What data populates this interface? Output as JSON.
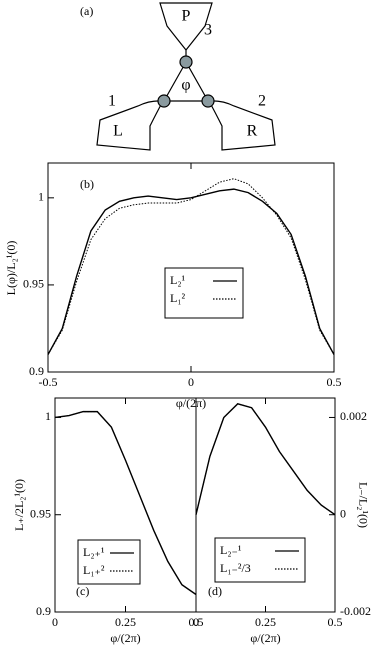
{
  "diagram": {
    "label": "(a)",
    "nodes": [
      {
        "label": "P"
      },
      {
        "label": "3"
      },
      {
        "label": "φ"
      },
      {
        "label": "1"
      },
      {
        "label": "2"
      },
      {
        "label": "L"
      },
      {
        "label": "R"
      }
    ]
  },
  "chart_data": [
    {
      "type": "line",
      "label": "(b)",
      "x_label": "φ/(2π)",
      "y_label": "L(φ)/L₂¹(0)",
      "x": [
        -0.5,
        -0.45,
        -0.4,
        -0.35,
        -0.3,
        -0.25,
        -0.2,
        -0.15,
        -0.1,
        -0.05,
        0,
        0.05,
        0.1,
        0.15,
        0.2,
        0.25,
        0.3,
        0.35,
        0.4,
        0.45,
        0.5
      ],
      "series": [
        {
          "name": "L₂¹",
          "color": "#000000",
          "style": "solid",
          "values": [
            0.91,
            0.925,
            0.955,
            0.981,
            0.993,
            0.998,
            1.0,
            1.001,
            1.0,
            0.999,
            1.0,
            1.002,
            1.004,
            1.005,
            1.003,
            0.998,
            0.991,
            0.979,
            0.955,
            0.925,
            0.91
          ]
        },
        {
          "name": "L₁²",
          "color": "#000000",
          "style": "dotted",
          "values": [
            0.91,
            0.924,
            0.952,
            0.976,
            0.988,
            0.994,
            0.996,
            0.997,
            0.997,
            0.997,
            0.999,
            1.004,
            1.009,
            1.011,
            1.008,
            1.0,
            0.99,
            0.977,
            0.953,
            0.924,
            0.91
          ]
        }
      ],
      "xlim": [
        -0.5,
        0.5
      ],
      "xticks": [
        -0.5,
        0,
        0.5
      ],
      "ylim": [
        0.9,
        1.02
      ],
      "yticks": [
        0.9,
        0.95,
        1
      ]
    },
    {
      "type": "line",
      "label": "(c)",
      "x_label": "φ/(2π)",
      "y_label": "L₊/2L₂¹(0)",
      "x": [
        0,
        0.05,
        0.1,
        0.15,
        0.2,
        0.25,
        0.3,
        0.35,
        0.4,
        0.45,
        0.5
      ],
      "series": [
        {
          "name": "L₂₊¹",
          "color": "#000000",
          "style": "solid",
          "values": [
            1.0,
            1.001,
            1.003,
            1.003,
            0.995,
            0.978,
            0.96,
            0.942,
            0.926,
            0.914,
            0.909
          ]
        },
        {
          "name": "L₁₊²",
          "color": "#000000",
          "style": "dotted",
          "values": [
            1.0,
            1.001,
            1.003,
            1.003,
            0.995,
            0.978,
            0.96,
            0.942,
            0.926,
            0.914,
            0.909
          ]
        }
      ],
      "xlim": [
        0,
        0.5
      ],
      "xticks": [
        0,
        0.25,
        0.5
      ],
      "ylim": [
        0.9,
        1.01
      ],
      "yticks": [
        0.9,
        0.95,
        1
      ]
    },
    {
      "type": "line",
      "label": "(d)",
      "x_label": "φ/(2π)",
      "y_label": "L₋/L₂¹(0)",
      "x": [
        0,
        0.05,
        0.1,
        0.15,
        0.2,
        0.25,
        0.3,
        0.35,
        0.4,
        0.45,
        0.5
      ],
      "series": [
        {
          "name": "L₂₋¹",
          "color": "#000000",
          "style": "solid",
          "axis": "y2",
          "values": [
            0,
            0.0012,
            0.002,
            0.00228,
            0.0022,
            0.0018,
            0.0013,
            0.0009,
            0.0005,
            0.0002,
            0
          ]
        },
        {
          "name": "L₁₋²/3",
          "color": "#000000",
          "style": "dotted",
          "axis": "y2",
          "values": [
            0,
            0.0012,
            0.002,
            0.00228,
            0.0022,
            0.0018,
            0.0013,
            0.0009,
            0.0005,
            0.0002,
            0
          ]
        }
      ],
      "xlim": [
        0,
        0.5
      ],
      "xticks": [
        0,
        0.25,
        0.5
      ],
      "y2lim": [
        -0.002,
        0.0024
      ],
      "y2ticks": [
        -0.002,
        0,
        0.002
      ]
    }
  ]
}
